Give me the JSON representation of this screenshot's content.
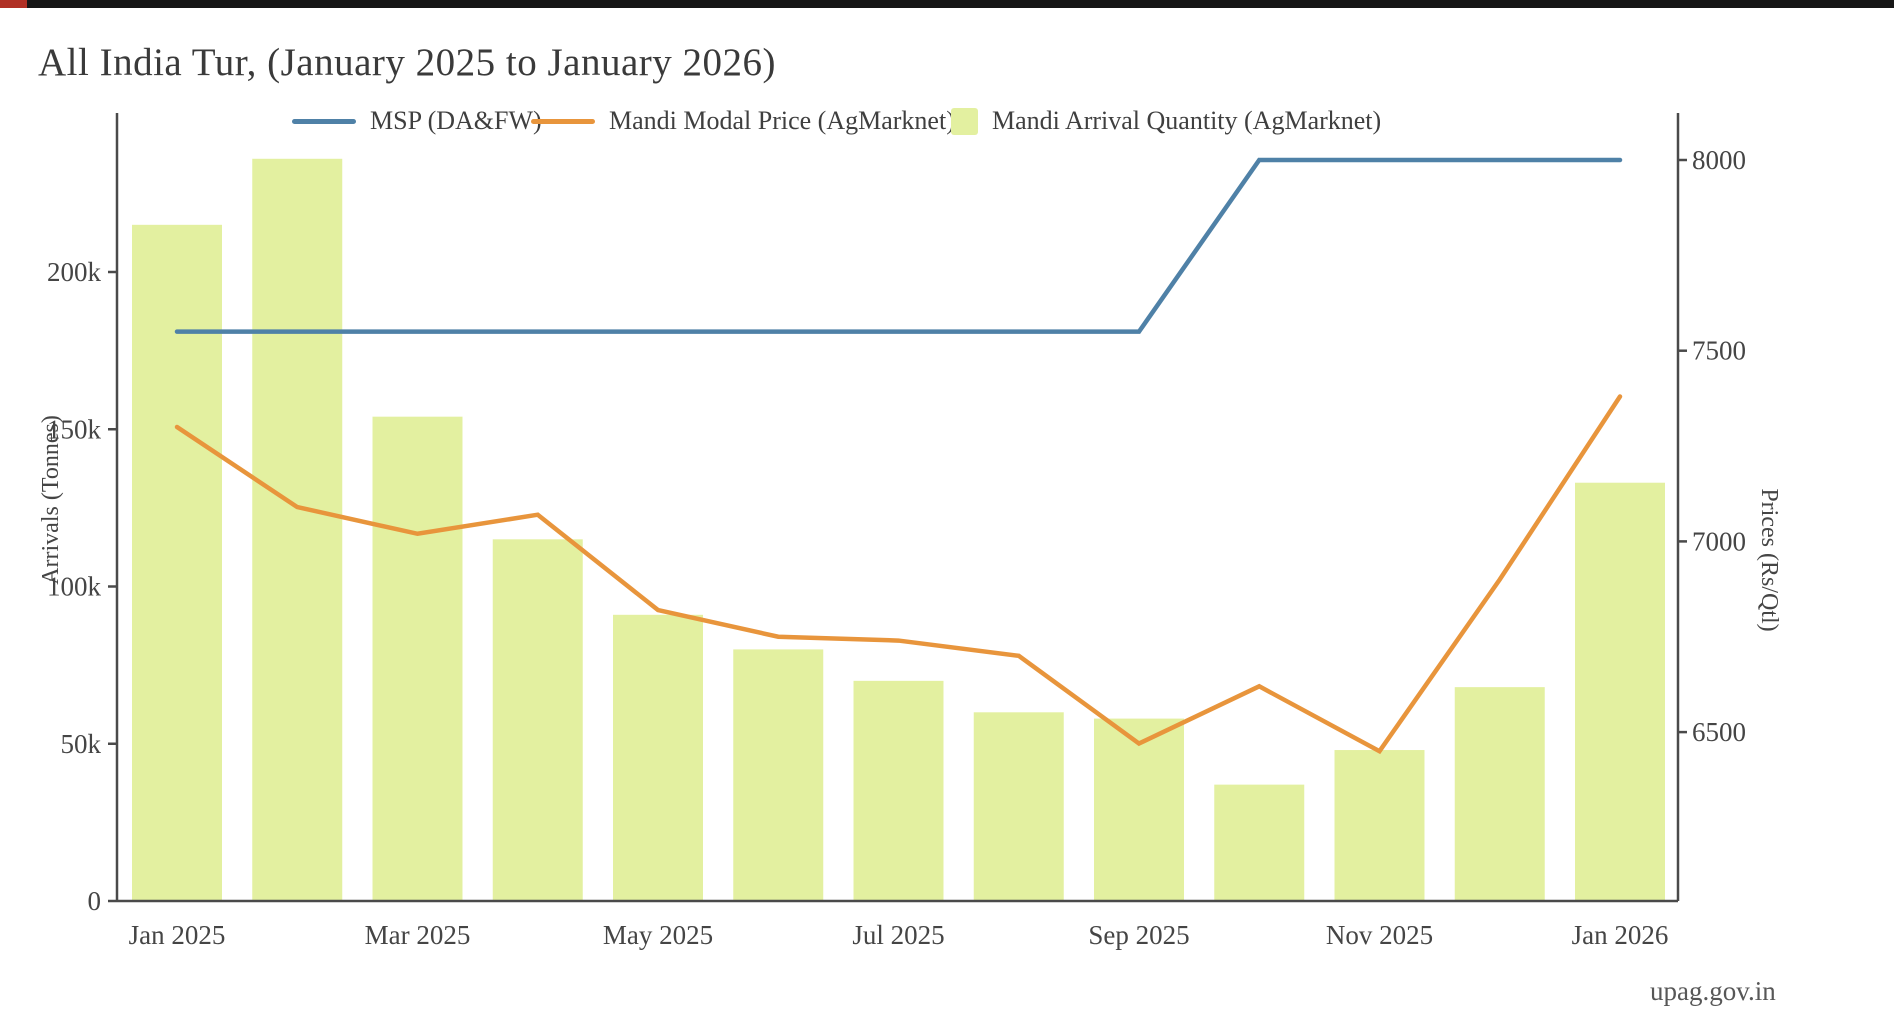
{
  "page": {
    "title": "All India Tur, (January 2025 to January 2026)",
    "watermark": "upag.gov.in",
    "background_color": "#ffffff",
    "top_strip_color": "#161616",
    "top_strip_accent_color": "#b03025"
  },
  "legend": {
    "items": [
      {
        "label": "MSP (DA&FW)",
        "swatch": "line",
        "color": "#4f81a7"
      },
      {
        "label": "Mandi Modal Price (AgMarknet)",
        "swatch": "line",
        "color": "#e8953c"
      },
      {
        "label": "Mandi Arrival Quantity (AgMarknet)",
        "swatch": "square",
        "color": "#e3f0a0"
      }
    ]
  },
  "chart_data": {
    "type": "bar",
    "subtype": "dual-axis bar + line combo",
    "title": "All India Tur, (January 2025 to January 2026)",
    "categories": [
      "Jan 2025",
      "Feb 2025",
      "Mar 2025",
      "Apr 2025",
      "May 2025",
      "Jun 2025",
      "Jul 2025",
      "Aug 2025",
      "Sep 2025",
      "Oct 2025",
      "Nov 2025",
      "Dec 2025",
      "Jan 2026"
    ],
    "x_tick_labels_shown": [
      "Jan 2025",
      "Mar 2025",
      "May 2025",
      "Jul 2025",
      "Sep 2025",
      "Nov 2025",
      "Jan 2026"
    ],
    "series": [
      {
        "name": "MSP (DA&FW)",
        "type": "line",
        "axis": "right",
        "color": "#4f81a7",
        "values": [
          7550,
          7550,
          7550,
          7550,
          7550,
          7550,
          7550,
          7550,
          7550,
          8000,
          8000,
          8000,
          8000
        ]
      },
      {
        "name": "Mandi Modal Price (AgMarknet)",
        "type": "line",
        "axis": "right",
        "color": "#e8953c",
        "values": [
          7300,
          7090,
          7020,
          7070,
          6820,
          6750,
          6740,
          6700,
          6470,
          6620,
          6450,
          6900,
          7380
        ]
      },
      {
        "name": "Mandi Arrival Quantity (AgMarknet)",
        "type": "bar",
        "axis": "left",
        "color": "#e3f0a0",
        "values": [
          215000,
          236000,
          154000,
          115000,
          91000,
          80000,
          70000,
          60000,
          58000,
          37000,
          48000,
          68000,
          133000
        ]
      }
    ],
    "left_axis": {
      "label": "Arrivals (Tonnes)",
      "tick_labels": [
        "0",
        "50k",
        "100k",
        "150k",
        "200k"
      ],
      "tick_values": [
        0,
        50000,
        100000,
        150000,
        200000
      ],
      "range": [
        0,
        250600
      ]
    },
    "right_axis": {
      "label": "Prices (Rs/Qtl)",
      "tick_labels": [
        "6500",
        "7000",
        "7500",
        "8000"
      ],
      "tick_values": [
        6500,
        7000,
        7500,
        8000
      ],
      "range": [
        6057,
        8123
      ]
    },
    "grid": false,
    "legend_position": "top"
  }
}
